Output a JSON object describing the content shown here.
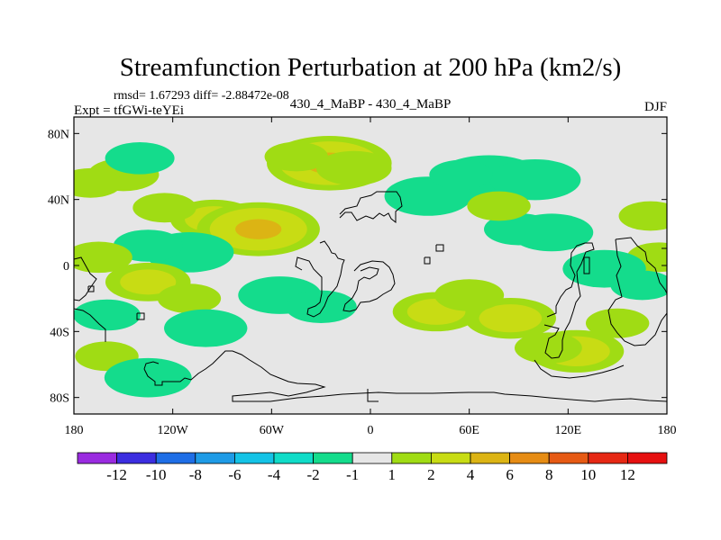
{
  "chart_data": {
    "type": "heatmap",
    "title": "Streamfunction Perturbation at 200 hPa (km2/s)",
    "stats": "rmsd= 1.67293 diff= -2.88472e-08",
    "left_label": "Expt = tfGWi-teYEi",
    "center_label": "430_4_MaBP - 430_4_MaBP",
    "right_label": "DJF",
    "x_range": [
      -180,
      180
    ],
    "y_range": [
      -90,
      90
    ],
    "x_ticks": [
      {
        "value": -180,
        "label": "180"
      },
      {
        "value": -120,
        "label": "120W"
      },
      {
        "value": -60,
        "label": "60W"
      },
      {
        "value": 0,
        "label": "0"
      },
      {
        "value": 60,
        "label": "60E"
      },
      {
        "value": 120,
        "label": "120E"
      },
      {
        "value": 180,
        "label": "180"
      }
    ],
    "y_ticks": [
      {
        "value": 80,
        "label": "80N"
      },
      {
        "value": 40,
        "label": "40N"
      },
      {
        "value": 0,
        "label": "0"
      },
      {
        "value": -40,
        "label": "40S"
      },
      {
        "value": -80,
        "label": "80S"
      }
    ],
    "colorbar": {
      "labels": [
        "-12",
        "-10",
        "-8",
        "-6",
        "-4",
        "-2",
        "-1",
        "1",
        "2",
        "4",
        "6",
        "8",
        "10",
        "12"
      ],
      "colors": [
        "#9a2be0",
        "#3c2ee0",
        "#1e6ee6",
        "#1e9be6",
        "#14c3e6",
        "#10dcc8",
        "#14dc8c",
        "#e6e6e6",
        "#a0dc14",
        "#c8dc14",
        "#dcb414",
        "#e68c14",
        "#e65a14",
        "#e62814",
        "#e61010"
      ]
    },
    "anomalies": [
      {
        "lon": -25,
        "lat": 62,
        "value": 4.3
      },
      {
        "lon": -10,
        "lat": 59,
        "value": 1.8
      },
      {
        "lon": -45,
        "lat": 66,
        "value": 1.2
      },
      {
        "lon": -150,
        "lat": 55,
        "value": 1.6
      },
      {
        "lon": -170,
        "lat": 50,
        "value": 1.2
      },
      {
        "lon": -95,
        "lat": 28,
        "value": 2.4
      },
      {
        "lon": -68,
        "lat": 22,
        "value": 4.2
      },
      {
        "lon": -125,
        "lat": 35,
        "value": 1.2
      },
      {
        "lon": -110,
        "lat": 8,
        "value": -2.5
      },
      {
        "lon": -135,
        "lat": 12,
        "value": -1.5
      },
      {
        "lon": -140,
        "lat": 65,
        "value": -1.5
      },
      {
        "lon": 72,
        "lat": 52,
        "value": -3.6
      },
      {
        "lon": 100,
        "lat": 52,
        "value": -2.6
      },
      {
        "lon": 35,
        "lat": 42,
        "value": -2.4
      },
      {
        "lon": 55,
        "lat": 55,
        "value": -1.2
      },
      {
        "lon": 110,
        "lat": 20,
        "value": -2.2
      },
      {
        "lon": 90,
        "lat": 22,
        "value": -1.5
      },
      {
        "lon": 78,
        "lat": 36,
        "value": 1.2
      },
      {
        "lon": 170,
        "lat": 30,
        "value": 1.2
      },
      {
        "lon": -165,
        "lat": 5,
        "value": 1.4
      },
      {
        "lon": 175,
        "lat": 5,
        "value": 1.2
      },
      {
        "lon": 142,
        "lat": -2,
        "value": -2.2
      },
      {
        "lon": 165,
        "lat": -12,
        "value": -1.2
      },
      {
        "lon": -135,
        "lat": -10,
        "value": 2.3
      },
      {
        "lon": -110,
        "lat": -20,
        "value": 1.2
      },
      {
        "lon": -55,
        "lat": -18,
        "value": -2.2
      },
      {
        "lon": -30,
        "lat": -25,
        "value": -1.6
      },
      {
        "lon": -100,
        "lat": -38,
        "value": -2.2
      },
      {
        "lon": -160,
        "lat": -30,
        "value": -1.4
      },
      {
        "lon": -160,
        "lat": -55,
        "value": 1.2
      },
      {
        "lon": -135,
        "lat": -68,
        "value": -2.4
      },
      {
        "lon": 40,
        "lat": -28,
        "value": 2.4
      },
      {
        "lon": 85,
        "lat": -32,
        "value": 2.6
      },
      {
        "lon": 60,
        "lat": -18,
        "value": 1.5
      },
      {
        "lon": 125,
        "lat": -52,
        "value": 2.8
      },
      {
        "lon": 108,
        "lat": -50,
        "value": 1.4
      },
      {
        "lon": 150,
        "lat": -35,
        "value": 1.2
      }
    ]
  }
}
